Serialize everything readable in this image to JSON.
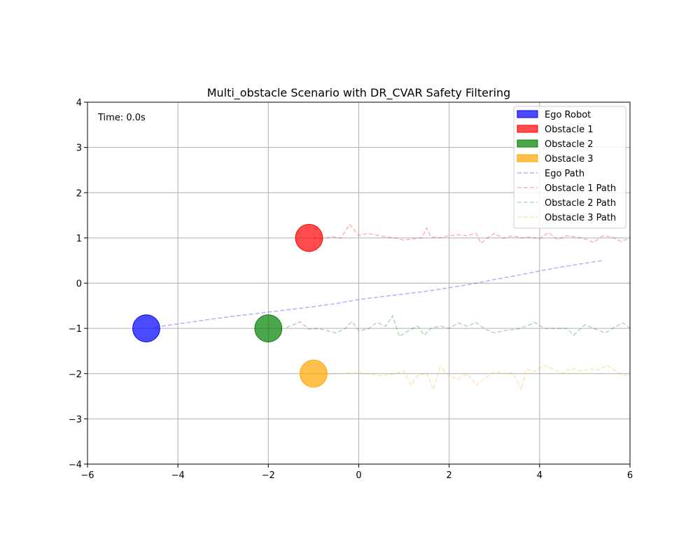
{
  "chart_data": {
    "type": "scatter",
    "title": "Multi_obstacle Scenario with DR_CVAR Safety Filtering",
    "xlabel": "",
    "ylabel": "",
    "xlim": [
      -6,
      6
    ],
    "ylim": [
      -4,
      4
    ],
    "xticks": [
      -6,
      -4,
      -2,
      0,
      2,
      4,
      6
    ],
    "yticks": [
      -4,
      -3,
      -2,
      -1,
      0,
      1,
      2,
      3,
      4
    ],
    "xtick_labels": [
      "−6",
      "−4",
      "−2",
      "0",
      "2",
      "4",
      "6"
    ],
    "ytick_labels": [
      "−4",
      "−3",
      "−2",
      "−1",
      "0",
      "1",
      "2",
      "3",
      "4"
    ],
    "grid": true,
    "legend_position": "top-right",
    "annotation": "Time: 0.0s",
    "agents": [
      {
        "name": "Ego Robot",
        "x": -4.7,
        "y": -1.0,
        "radius": 0.3,
        "color": "#0000ff"
      },
      {
        "name": "Obstacle 1",
        "x": -1.1,
        "y": 1.0,
        "radius": 0.3,
        "color": "#ff0000"
      },
      {
        "name": "Obstacle 2",
        "x": -2.0,
        "y": -1.0,
        "radius": 0.3,
        "color": "#008000"
      },
      {
        "name": "Obstacle 3",
        "x": -1.0,
        "y": -2.0,
        "radius": 0.3,
        "color": "#ffa500"
      }
    ],
    "paths": [
      {
        "name": "Ego Path",
        "color": "#0000ff",
        "points": [
          [
            -4.5,
            -0.97
          ],
          [
            -4.0,
            -0.9
          ],
          [
            -3.5,
            -0.83
          ],
          [
            -3.0,
            -0.76
          ],
          [
            -2.5,
            -0.7
          ],
          [
            -2.0,
            -0.64
          ],
          [
            -1.5,
            -0.58
          ],
          [
            -1.0,
            -0.52
          ],
          [
            -0.5,
            -0.45
          ],
          [
            0.0,
            -0.36
          ],
          [
            0.5,
            -0.3
          ],
          [
            1.0,
            -0.24
          ],
          [
            1.5,
            -0.18
          ],
          [
            2.0,
            -0.1
          ],
          [
            2.5,
            -0.02
          ],
          [
            3.0,
            0.08
          ],
          [
            3.5,
            0.17
          ],
          [
            4.0,
            0.27
          ],
          [
            4.5,
            0.36
          ],
          [
            5.0,
            0.44
          ],
          [
            5.4,
            0.5
          ]
        ]
      },
      {
        "name": "Obstacle 1 Path",
        "color": "#ff0000",
        "points": [
          [
            -1.0,
            1.0
          ],
          [
            -0.8,
            0.98
          ],
          [
            -0.6,
            1.03
          ],
          [
            -0.4,
            0.99
          ],
          [
            -0.2,
            1.3
          ],
          [
            0.0,
            1.05
          ],
          [
            0.2,
            1.1
          ],
          [
            0.4,
            1.06
          ],
          [
            0.6,
            1.02
          ],
          [
            0.8,
            1.0
          ],
          [
            1.0,
            0.95
          ],
          [
            1.2,
            0.98
          ],
          [
            1.4,
            1.0
          ],
          [
            1.5,
            1.22
          ],
          [
            1.6,
            1.02
          ],
          [
            1.8,
            1.0
          ],
          [
            2.0,
            1.05
          ],
          [
            2.2,
            1.07
          ],
          [
            2.4,
            1.05
          ],
          [
            2.6,
            1.1
          ],
          [
            2.7,
            0.88
          ],
          [
            2.85,
            1.0
          ],
          [
            3.0,
            1.1
          ],
          [
            3.2,
            0.99
          ],
          [
            3.4,
            1.05
          ],
          [
            3.6,
            1.0
          ],
          [
            3.8,
            1.02
          ],
          [
            4.0,
            0.98
          ],
          [
            4.2,
            1.12
          ],
          [
            4.4,
            0.96
          ],
          [
            4.6,
            1.05
          ],
          [
            4.8,
            1.02
          ],
          [
            5.0,
            0.98
          ],
          [
            5.2,
            0.9
          ],
          [
            5.4,
            1.05
          ],
          [
            5.6,
            1.02
          ],
          [
            5.8,
            0.92
          ],
          [
            6.0,
            1.0
          ]
        ]
      },
      {
        "name": "Obstacle 2 Path",
        "color": "#008000",
        "points": [
          [
            -1.6,
            -0.98
          ],
          [
            -1.4,
            -0.9
          ],
          [
            -1.3,
            -0.85
          ],
          [
            -1.1,
            -1.02
          ],
          [
            -0.9,
            -1.0
          ],
          [
            -0.7,
            -1.05
          ],
          [
            -0.5,
            -1.1
          ],
          [
            -0.3,
            -1.0
          ],
          [
            -0.15,
            -0.85
          ],
          [
            0.0,
            -1.05
          ],
          [
            0.2,
            -1.02
          ],
          [
            0.4,
            -0.87
          ],
          [
            0.6,
            -0.95
          ],
          [
            0.75,
            -0.72
          ],
          [
            0.9,
            -1.18
          ],
          [
            1.1,
            -1.05
          ],
          [
            1.3,
            -0.95
          ],
          [
            1.45,
            -1.15
          ],
          [
            1.6,
            -1.0
          ],
          [
            1.8,
            -0.95
          ],
          [
            2.0,
            -1.0
          ],
          [
            2.2,
            -0.88
          ],
          [
            2.4,
            -0.95
          ],
          [
            2.6,
            -0.87
          ],
          [
            2.8,
            -1.02
          ],
          [
            3.0,
            -1.1
          ],
          [
            3.2,
            -1.05
          ],
          [
            3.5,
            -1.02
          ],
          [
            3.7,
            -0.95
          ],
          [
            3.9,
            -0.87
          ],
          [
            4.1,
            -1.0
          ],
          [
            4.4,
            -1.0
          ],
          [
            4.6,
            -1.0
          ],
          [
            4.75,
            -1.15
          ],
          [
            5.0,
            -0.92
          ],
          [
            5.2,
            -1.0
          ],
          [
            5.45,
            -1.1
          ],
          [
            5.7,
            -0.95
          ],
          [
            5.85,
            -0.88
          ],
          [
            6.0,
            -1.0
          ]
        ]
      },
      {
        "name": "Obstacle 3 Path",
        "color": "#ffa500",
        "points": [
          [
            -1.1,
            -2.02
          ],
          [
            -0.9,
            -1.98
          ],
          [
            -0.7,
            -2.02
          ],
          [
            -0.4,
            -2.0
          ],
          [
            -0.1,
            -1.98
          ],
          [
            0.2,
            -2.0
          ],
          [
            0.5,
            -2.05
          ],
          [
            0.8,
            -2.0
          ],
          [
            1.0,
            -1.95
          ],
          [
            1.15,
            -2.25
          ],
          [
            1.3,
            -2.05
          ],
          [
            1.5,
            -1.98
          ],
          [
            1.65,
            -2.35
          ],
          [
            1.8,
            -1.85
          ],
          [
            2.0,
            -2.05
          ],
          [
            2.2,
            -2.12
          ],
          [
            2.4,
            -2.0
          ],
          [
            2.6,
            -2.25
          ],
          [
            2.8,
            -2.1
          ],
          [
            3.0,
            -1.95
          ],
          [
            3.2,
            -2.0
          ],
          [
            3.4,
            -1.98
          ],
          [
            3.6,
            -2.35
          ],
          [
            3.7,
            -1.9
          ],
          [
            3.9,
            -1.95
          ],
          [
            4.1,
            -1.82
          ],
          [
            4.3,
            -1.9
          ],
          [
            4.5,
            -2.0
          ],
          [
            4.7,
            -1.88
          ],
          [
            4.9,
            -1.95
          ],
          [
            5.1,
            -1.9
          ],
          [
            5.3,
            -1.92
          ],
          [
            5.5,
            -1.82
          ],
          [
            5.7,
            -1.95
          ],
          [
            5.85,
            -2.05
          ],
          [
            6.0,
            -2.0
          ]
        ]
      }
    ],
    "legend": [
      {
        "label": "Ego Robot",
        "kind": "patch",
        "color": "#0000ff"
      },
      {
        "label": "Obstacle 1",
        "kind": "patch",
        "color": "#ff0000"
      },
      {
        "label": "Obstacle 2",
        "kind": "patch",
        "color": "#008000"
      },
      {
        "label": "Obstacle 3",
        "kind": "patch",
        "color": "#ffa500"
      },
      {
        "label": "Ego Path",
        "kind": "line",
        "color": "#0000ff"
      },
      {
        "label": "Obstacle 1 Path",
        "kind": "line",
        "color": "#ff0000"
      },
      {
        "label": "Obstacle 2 Path",
        "kind": "line",
        "color": "#008000"
      },
      {
        "label": "Obstacle 3 Path",
        "kind": "line",
        "color": "#ffa500"
      }
    ]
  }
}
